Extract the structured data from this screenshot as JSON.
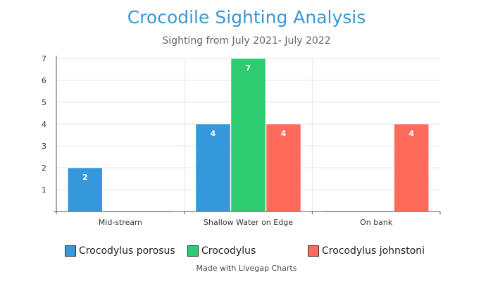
{
  "title": "Crocodile Sighting Analysis",
  "subtitle": "Sighting from July 2021- July 2022",
  "footer": "Made with Livegap Charts",
  "chart_data": {
    "type": "bar",
    "categories": [
      "Mid-stream",
      "Shallow Water on Edge",
      "On bank"
    ],
    "series": [
      {
        "name": "Crocodylus porosus",
        "color": "#3498db",
        "values": [
          2,
          4,
          0
        ]
      },
      {
        "name": "Crocodylus",
        "color": "#2ecc71",
        "values": [
          0,
          7,
          0
        ]
      },
      {
        "name": "Crocodylus johnstoni",
        "color": "#ff6b5b",
        "values": [
          0,
          4,
          4
        ]
      }
    ],
    "ylim": [
      0,
      7
    ],
    "yticks": [
      1,
      2,
      3,
      4,
      5,
      6,
      7
    ],
    "grid": true,
    "legend": "bottom"
  }
}
